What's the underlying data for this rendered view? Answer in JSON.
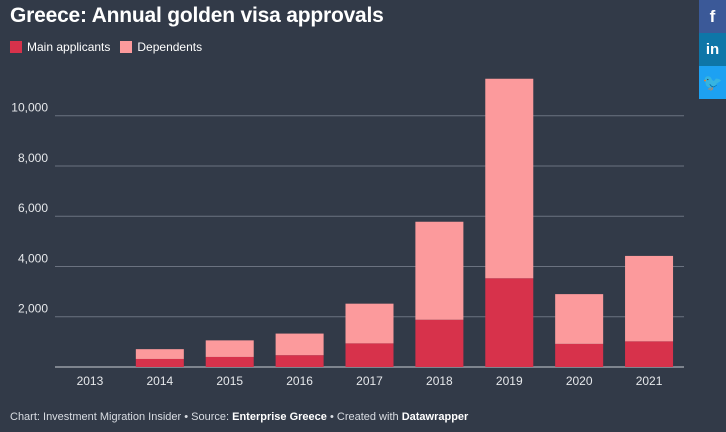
{
  "header": {
    "title": "Greece: Annual golden visa approvals"
  },
  "legend": [
    {
      "label": "Main applicants",
      "color": "#d7324b"
    },
    {
      "label": "Dependents",
      "color": "#fc9a9c"
    }
  ],
  "chart_data": {
    "type": "bar",
    "stacked": true,
    "title": "Greece: Annual golden visa approvals",
    "categories": [
      "2013",
      "2014",
      "2015",
      "2016",
      "2017",
      "2018",
      "2019",
      "2020",
      "2021"
    ],
    "series": [
      {
        "name": "Main applicants",
        "color": "#d7324b",
        "values": [
          0,
          320,
          400,
          470,
          940,
          1880,
          3530,
          920,
          1020
        ]
      },
      {
        "name": "Dependents",
        "color": "#fc9a9c",
        "values": [
          0,
          390,
          660,
          860,
          1580,
          3900,
          7940,
          1980,
          3400
        ]
      }
    ],
    "yticks": [
      2000,
      4000,
      6000,
      8000,
      10000
    ],
    "ytick_labels": [
      "2,000",
      "4,000",
      "6,000",
      "8,000",
      "10,000"
    ],
    "ylim": [
      0,
      11500
    ],
    "grid": true,
    "legend_position": "top-left"
  },
  "footer": {
    "prefix": "Chart: Investment Migration Insider • Source: ",
    "source": "Enterprise Greece",
    "middle": " • Created with ",
    "tool": "Datawrapper"
  },
  "social": {
    "facebook_glyph": "f",
    "linkedin_glyph": "in",
    "twitter_glyph": "🐦"
  }
}
